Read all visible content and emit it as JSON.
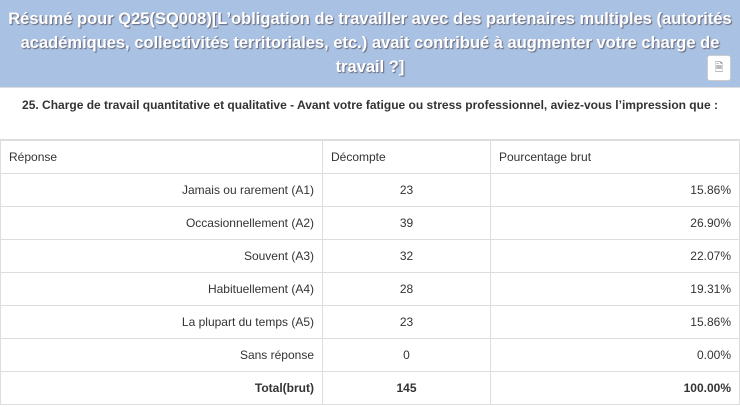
{
  "header": {
    "title": "Résumé pour Q25(SQ008)[L’obligation de travailler avec des partenaires multiples (autorités académiques, collectivités territoriales, etc.) avait contribué à augmenter votre charge de travail ?]",
    "export_icon": "pdf-icon"
  },
  "question": "25. Charge de travail quantitative et qualitative - Avant votre fatigue ou stress professionnel, aviez-vous l’impression que :",
  "table": {
    "columns": [
      "Réponse",
      "Décompte",
      "Pourcentage brut"
    ],
    "rows": [
      [
        "Jamais ou rarement (A1)",
        "23",
        "15.86%"
      ],
      [
        "Occasionnellement (A2)",
        "39",
        "26.90%"
      ],
      [
        "Souvent (A3)",
        "32",
        "22.07%"
      ],
      [
        "Habituellement (A4)",
        "28",
        "19.31%"
      ],
      [
        "La plupart du temps (A5)",
        "23",
        "15.86%"
      ],
      [
        "Sans réponse",
        "0",
        "0.00%"
      ]
    ],
    "total": [
      "Total(brut)",
      "145",
      "100.00%"
    ]
  }
}
